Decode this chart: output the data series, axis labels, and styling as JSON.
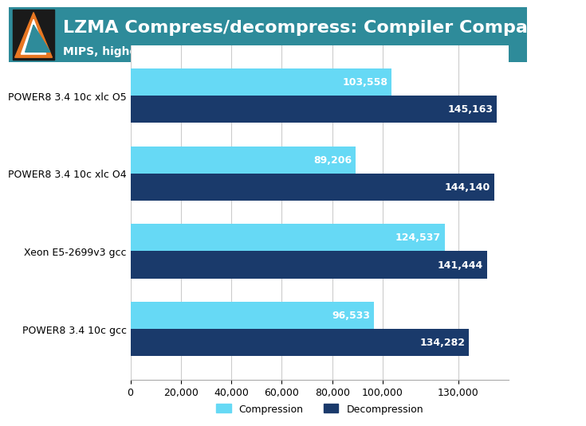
{
  "title": "LZMA Compress/decompress: Compiler Comparison",
  "subtitle": "MIPS, higher is better",
  "categories": [
    "POWER8 3.4 10c xlc O5",
    "POWER8 3.4 10c xlc O4",
    "Xeon E5-2699v3 gcc",
    "POWER8 3.4 10c gcc"
  ],
  "compression": [
    103558,
    89206,
    124537,
    96533
  ],
  "decompression": [
    145163,
    144140,
    141444,
    134282
  ],
  "compression_color": "#66d9f5",
  "decompression_color": "#1a3a6b",
  "bar_height": 0.35,
  "xlim": [
    0,
    150000
  ],
  "xticks": [
    0,
    20000,
    40000,
    60000,
    80000,
    100000,
    130000
  ],
  "header_bg": "#2e8b9a",
  "header_text_color": "#ffffff",
  "title_fontsize": 16,
  "subtitle_fontsize": 10,
  "label_fontsize": 9,
  "value_fontsize": 9,
  "legend_labels": [
    "Compression",
    "Decompression"
  ],
  "background_color": "#ffffff"
}
